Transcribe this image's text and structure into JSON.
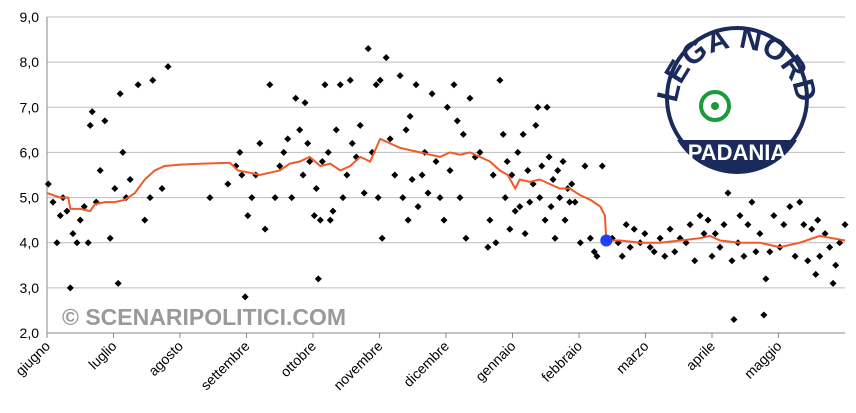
{
  "chart_data": {
    "type": "scatter",
    "xlim": [
      0,
      12
    ],
    "xticks": [
      {
        "value": 0,
        "label": "giugno"
      },
      {
        "value": 1,
        "label": "luglio"
      },
      {
        "value": 2,
        "label": "agosto"
      },
      {
        "value": 3,
        "label": "settembre"
      },
      {
        "value": 4,
        "label": "ottobre"
      },
      {
        "value": 5,
        "label": "novembre"
      },
      {
        "value": 6,
        "label": "dicembre"
      },
      {
        "value": 7,
        "label": "gennaio"
      },
      {
        "value": 8,
        "label": "febbraio"
      },
      {
        "value": 9,
        "label": "marzo"
      },
      {
        "value": 10,
        "label": "aprile"
      },
      {
        "value": 11,
        "label": "maggio"
      }
    ],
    "ylim": [
      2,
      9
    ],
    "yticks": [
      {
        "value": 2,
        "label": "2,0"
      },
      {
        "value": 3,
        "label": "3,0"
      },
      {
        "value": 4,
        "label": "4,0"
      },
      {
        "value": 5,
        "label": "5,0"
      },
      {
        "value": 6,
        "label": "6,0"
      },
      {
        "value": 7,
        "label": "7,0"
      },
      {
        "value": 8,
        "label": "8,0"
      },
      {
        "value": 9,
        "label": "9,0"
      }
    ],
    "grid": true,
    "series": [
      {
        "type": "scatter",
        "color": "#000000",
        "x": [
          0.02,
          0.09,
          0.15,
          0.2,
          0.24,
          0.3,
          0.35,
          0.39,
          0.45,
          0.5,
          0.56,
          0.62,
          0.65,
          0.68,
          0.74,
          0.8,
          0.87,
          0.95,
          1.02,
          1.07,
          1.1,
          1.14,
          1.19,
          1.25,
          1.37,
          1.47,
          1.55,
          1.59,
          1.73,
          1.82,
          2.45,
          2.72,
          2.84,
          2.9,
          2.93,
          2.98,
          3.02,
          3.08,
          3.14,
          3.2,
          3.28,
          3.35,
          3.43,
          3.5,
          3.56,
          3.62,
          3.68,
          3.74,
          3.8,
          3.85,
          3.88,
          3.92,
          3.95,
          4.02,
          4.05,
          4.08,
          4.11,
          4.14,
          4.18,
          4.23,
          4.26,
          4.3,
          4.35,
          4.41,
          4.45,
          4.51,
          4.56,
          4.59,
          4.65,
          4.71,
          4.77,
          4.83,
          4.89,
          4.95,
          4.98,
          5.01,
          5.04,
          5.1,
          5.16,
          5.23,
          5.31,
          5.35,
          5.4,
          5.43,
          5.46,
          5.49,
          5.55,
          5.58,
          5.64,
          5.68,
          5.73,
          5.79,
          5.85,
          5.91,
          5.97,
          6.02,
          6.06,
          6.12,
          6.17,
          6.21,
          6.26,
          6.3,
          6.36,
          6.44,
          6.51,
          6.63,
          6.66,
          6.71,
          6.75,
          6.81,
          6.86,
          6.89,
          6.92,
          6.96,
          6.99,
          7.04,
          7.08,
          7.11,
          7.16,
          7.19,
          7.23,
          7.26,
          7.31,
          7.35,
          7.38,
          7.41,
          7.44,
          7.49,
          7.52,
          7.55,
          7.58,
          7.61,
          7.64,
          7.68,
          7.71,
          7.76,
          7.79,
          7.83,
          7.86,
          7.89,
          7.94,
          8.02,
          8.09,
          8.17,
          8.23,
          8.27,
          8.35,
          8.5,
          8.59,
          8.65,
          8.71,
          8.77,
          8.83,
          8.92,
          8.99,
          9.07,
          9.13,
          9.22,
          9.29,
          9.37,
          9.44,
          9.52,
          9.61,
          9.67,
          9.74,
          9.82,
          9.88,
          9.94,
          10.0,
          10.05,
          10.12,
          10.18,
          10.24,
          10.3,
          10.33,
          10.39,
          10.42,
          10.48,
          10.54,
          10.6,
          10.66,
          10.72,
          10.78,
          10.81,
          10.87,
          10.93,
          11.02,
          11.08,
          11.17,
          11.25,
          11.32,
          11.38,
          11.44,
          11.5,
          11.56,
          11.59,
          11.62,
          11.7,
          11.77,
          11.82,
          11.86,
          11.92,
          12.0
        ],
        "values": [
          5.3,
          4.9,
          4.0,
          4.6,
          5.0,
          4.7,
          3.0,
          4.2,
          4.0,
          4.5,
          4.8,
          4.0,
          6.6,
          6.9,
          4.9,
          5.6,
          6.7,
          4.1,
          5.2,
          3.1,
          7.3,
          6.0,
          5.0,
          5.4,
          7.5,
          4.5,
          5.0,
          7.6,
          5.2,
          7.9,
          5.0,
          5.3,
          5.7,
          6.0,
          5.5,
          2.8,
          4.6,
          5.0,
          5.5,
          6.2,
          4.3,
          7.5,
          5.0,
          5.7,
          6.0,
          6.3,
          5.0,
          7.2,
          6.5,
          5.5,
          7.1,
          6.2,
          5.8,
          4.6,
          5.2,
          3.2,
          4.5,
          5.8,
          7.5,
          6.0,
          4.5,
          4.7,
          6.5,
          7.5,
          5.0,
          5.5,
          7.6,
          6.2,
          5.9,
          6.6,
          5.1,
          8.3,
          6.0,
          7.5,
          5.0,
          7.6,
          4.1,
          8.1,
          6.3,
          5.5,
          7.7,
          5.0,
          6.5,
          4.5,
          6.8,
          5.4,
          7.5,
          4.8,
          5.5,
          6.0,
          5.1,
          7.3,
          5.8,
          5.0,
          4.5,
          7.0,
          5.6,
          7.5,
          6.7,
          5.0,
          6.4,
          4.1,
          7.2,
          5.9,
          6.0,
          3.9,
          4.5,
          5.5,
          4.0,
          7.6,
          6.4,
          5.0,
          5.8,
          4.3,
          5.5,
          4.7,
          6.0,
          4.8,
          6.4,
          4.2,
          5.6,
          4.9,
          5.3,
          6.6,
          7.0,
          5.0,
          5.7,
          4.5,
          7.0,
          5.9,
          4.8,
          5.4,
          4.1,
          5.6,
          5.0,
          5.8,
          4.5,
          5.2,
          4.9,
          5.3,
          4.9,
          4.0,
          5.7,
          4.1,
          3.8,
          3.7,
          5.7,
          4.1,
          4.0,
          3.7,
          4.4,
          3.9,
          4.3,
          4.0,
          4.2,
          3.9,
          3.8,
          4.1,
          3.7,
          4.3,
          3.8,
          4.1,
          4.0,
          4.4,
          3.6,
          4.6,
          4.2,
          4.5,
          3.7,
          4.2,
          3.9,
          4.4,
          5.1,
          3.6,
          2.3,
          4.0,
          4.6,
          3.7,
          4.4,
          4.9,
          3.8,
          4.2,
          2.4,
          3.2,
          3.8,
          4.6,
          3.9,
          4.4,
          4.8,
          3.7,
          4.9,
          4.4,
          3.6,
          4.3,
          3.3,
          4.5,
          3.7,
          4.2,
          3.9,
          3.1,
          3.5,
          4.0,
          4.4
        ]
      },
      {
        "type": "line",
        "color": "#f05a28",
        "x": [
          0,
          0.2,
          0.32,
          0.35,
          0.5,
          0.65,
          0.72,
          0.87,
          1.02,
          1.17,
          1.32,
          1.47,
          1.62,
          1.77,
          2.0,
          2.3,
          2.75,
          2.87,
          3.05,
          3.2,
          3.35,
          3.5,
          3.65,
          3.8,
          3.95,
          4.11,
          4.26,
          4.41,
          4.56,
          4.71,
          4.86,
          5.01,
          5.16,
          5.31,
          5.46,
          5.61,
          5.76,
          5.91,
          6.06,
          6.21,
          6.36,
          6.51,
          6.66,
          6.81,
          6.93,
          7.04,
          7.11,
          7.26,
          7.41,
          7.56,
          7.71,
          7.86,
          8.02,
          8.17,
          8.32,
          8.39,
          8.41,
          8.62,
          8.92,
          9.22,
          9.52,
          9.82,
          9.97,
          10.12,
          10.42,
          10.72,
          11.02,
          11.32,
          11.62,
          12.0
        ],
        "values": [
          5.1,
          5.0,
          5.0,
          4.75,
          4.75,
          4.7,
          4.85,
          4.9,
          4.9,
          4.95,
          5.1,
          5.4,
          5.6,
          5.7,
          5.73,
          5.75,
          5.77,
          5.6,
          5.55,
          5.5,
          5.55,
          5.6,
          5.75,
          5.8,
          5.9,
          5.7,
          5.75,
          5.6,
          5.7,
          5.9,
          5.8,
          6.3,
          6.2,
          6.1,
          6.05,
          6.0,
          5.95,
          5.9,
          6.0,
          5.95,
          6.0,
          5.9,
          5.8,
          5.6,
          5.5,
          5.2,
          5.4,
          5.35,
          5.4,
          5.3,
          5.2,
          5.2,
          5.05,
          4.95,
          4.8,
          4.6,
          4.05,
          4.05,
          4.0,
          4.0,
          4.05,
          4.1,
          4.15,
          4.05,
          4.0,
          4.0,
          3.9,
          4.0,
          4.15,
          4.05
        ]
      },
      {
        "type": "scatter",
        "color": "#1f3fff",
        "x": [
          8.41
        ],
        "values": [
          4.05
        ]
      }
    ],
    "watermark": "© SCENARIPOLITICI.COM"
  },
  "logo": {
    "text": "LEGA NORD",
    "subtext": "PADANIA"
  }
}
